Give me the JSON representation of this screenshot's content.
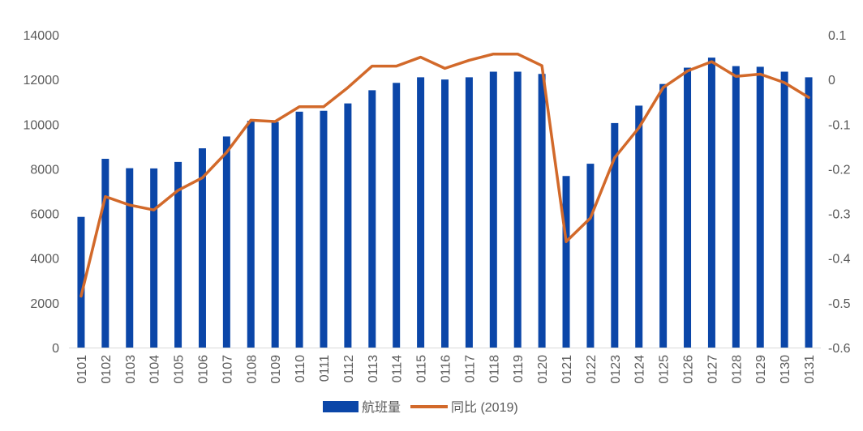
{
  "chart_data": {
    "type": "bar",
    "title": "",
    "xlabel": "",
    "ylabel": "",
    "y2label": "",
    "categories": [
      "0101",
      "0102",
      "0103",
      "0104",
      "0105",
      "0106",
      "0107",
      "0108",
      "0109",
      "0110",
      "0111",
      "0112",
      "0113",
      "0114",
      "0115",
      "0116",
      "0117",
      "0118",
      "0119",
      "0120",
      "0121",
      "0122",
      "0123",
      "0124",
      "0125",
      "0126",
      "0127",
      "0128",
      "0129",
      "0130",
      "0131"
    ],
    "series": [
      {
        "name": "航班量",
        "type": "bar",
        "axis": "left",
        "color": "#0B46A8",
        "values": [
          5850,
          8450,
          8030,
          8020,
          8310,
          8920,
          9450,
          10150,
          10100,
          10560,
          10600,
          10930,
          11520,
          11850,
          12100,
          12000,
          12100,
          12350,
          12350,
          12250,
          7680,
          8230,
          10050,
          10830,
          11800,
          12530,
          12980,
          12600,
          12570,
          12350,
          12100
        ]
      },
      {
        "name": "同比 (2019)",
        "type": "line",
        "axis": "right",
        "color": "#D2692A",
        "values": [
          -0.485,
          -0.262,
          -0.281,
          -0.292,
          -0.248,
          -0.22,
          -0.163,
          -0.091,
          -0.094,
          -0.061,
          -0.061,
          -0.018,
          0.03,
          0.03,
          0.05,
          0.025,
          0.043,
          0.057,
          0.057,
          0.031,
          -0.363,
          -0.31,
          -0.175,
          -0.108,
          -0.018,
          0.019,
          0.04,
          0.007,
          0.012,
          -0.007,
          -0.04
        ]
      }
    ],
    "ylim": [
      0,
      14000
    ],
    "yticks": [
      "0",
      "2000",
      "4000",
      "6000",
      "8000",
      "10000",
      "12000",
      "14000"
    ],
    "y2lim": [
      -0.6,
      0.1
    ],
    "y2ticks": [
      "-0.6",
      "-0.5",
      "-0.4",
      "-0.3",
      "-0.2",
      "-0.1",
      "0",
      "0.1"
    ],
    "grid": false,
    "legend_position": "bottom"
  }
}
